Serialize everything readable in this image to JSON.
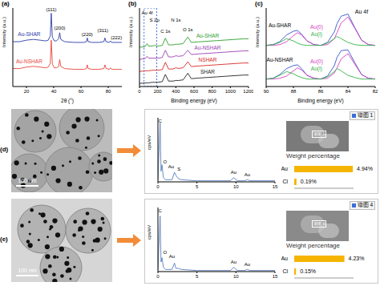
{
  "chart_data": [
    {
      "panel": "(a)",
      "type": "line",
      "x_label": "2θ (°)",
      "y_label": "Intensity (a.u.)",
      "tick_labels": "x",
      "x": [
        10,
        15,
        20,
        25,
        30,
        34,
        36,
        37.5,
        38.2,
        39,
        40.5,
        42,
        43.6,
        44.4,
        45.2,
        48,
        55,
        62,
        64,
        64.6,
        65.3,
        68,
        73,
        76.8,
        77.6,
        78.4,
        80.9,
        81.7,
        82.5,
        86,
        90
      ],
      "xlim": [
        10,
        90
      ],
      "xticks": [
        20,
        40,
        60,
        80
      ],
      "ylim": [
        0,
        105
      ],
      "series": [
        {
          "name": "Au-SHAR",
          "color": "#2b3ea8",
          "label_x": 22,
          "label_y": 70,
          "values": [
            60,
            60,
            62,
            63,
            62,
            61,
            62,
            68,
            98,
            66,
            61,
            61,
            64,
            72,
            63,
            60,
            59,
            59,
            60,
            65,
            60,
            59,
            59,
            60,
            65,
            60,
            59,
            61,
            59,
            59,
            59
          ]
        },
        {
          "name": "Au-NSHAR",
          "color": "#e8453c",
          "label_x": 22,
          "label_y": 34,
          "values": [
            24,
            24,
            26,
            27,
            26,
            25,
            26,
            31,
            62,
            30,
            25,
            25,
            27,
            36,
            27,
            24,
            23,
            23,
            24,
            29,
            24,
            23,
            23,
            24,
            29,
            24,
            23,
            25,
            23,
            23,
            23
          ]
        }
      ],
      "annotations": [
        {
          "text": "(111)",
          "x": 38.2,
          "y": 103
        },
        {
          "text": "(200)",
          "x": 44.4,
          "y": 78
        },
        {
          "text": "(220)",
          "x": 64.6,
          "y": 70
        },
        {
          "text": "(311)",
          "x": 76,
          "y": 75
        },
        {
          "text": "(222)",
          "x": 86,
          "y": 66
        }
      ]
    },
    {
      "panel": "(b)",
      "type": "line",
      "x_label": "Binding energy (eV)",
      "y_label": "Intensity (a.u.)",
      "tick_labels": "x",
      "x": [
        0,
        60,
        84,
        100,
        140,
        164,
        200,
        250,
        285,
        320,
        370,
        400,
        430,
        480,
        532,
        570,
        650,
        750,
        850,
        950,
        1050,
        1150,
        1200
      ],
      "xlim": [
        0,
        1200
      ],
      "xticks": [
        0,
        200,
        400,
        600,
        800,
        1000,
        1200
      ],
      "ylim": [
        0,
        130
      ],
      "highlight": [
        50,
        190
      ],
      "series": [
        {
          "name": "Au-SHAR",
          "color": "#2ca02c",
          "label_x": 750,
          "label_y": 84,
          "values": [
            65,
            66,
            71,
            67,
            67,
            68,
            67,
            68,
            80,
            69,
            69,
            70,
            70,
            71,
            82,
            73,
            74,
            75,
            76,
            77,
            78,
            79,
            79
          ]
        },
        {
          "name": "Au-NSHAR",
          "color": "#9b3fb5",
          "label_x": 750,
          "label_y": 64,
          "values": [
            45,
            46,
            50,
            47,
            47,
            47,
            47,
            48,
            60,
            49,
            49,
            51,
            50,
            51,
            60,
            53,
            54,
            55,
            56,
            57,
            58,
            59,
            59
          ]
        },
        {
          "name": "NSHAR",
          "color": "#d62728",
          "label_x": 750,
          "label_y": 44,
          "values": [
            25,
            26,
            26,
            26,
            27,
            27,
            27,
            28,
            40,
            29,
            29,
            31,
            30,
            31,
            41,
            33,
            34,
            35,
            36,
            37,
            38,
            39,
            39
          ]
        },
        {
          "name": "SHAR",
          "color": "#222222",
          "label_x": 750,
          "label_y": 24,
          "values": [
            5,
            6,
            6,
            6,
            7,
            7,
            7,
            8,
            20,
            9,
            9,
            10,
            10,
            11,
            22,
            13,
            14,
            15,
            16,
            17,
            18,
            19,
            19
          ]
        }
      ],
      "annotations": [
        {
          "text": "Au 4f",
          "x": 84,
          "y": 122
        },
        {
          "text": "S 2p",
          "x": 164,
          "y": 110
        },
        {
          "text": "C 1s",
          "x": 285,
          "y": 92
        },
        {
          "text": "N 1s",
          "x": 400,
          "y": 110
        },
        {
          "text": "O 1s",
          "x": 532,
          "y": 94
        }
      ]
    },
    {
      "panel": "(c)",
      "type": "line",
      "title": "Au 4f",
      "title_x": 83,
      "title_y": 100,
      "x_label": "Binding energy (eV)",
      "y_label": "Intensity (a.u.)",
      "tick_labels": "x",
      "x": [
        90,
        89.5,
        89,
        88.5,
        88,
        87.7,
        87.4,
        87,
        86.5,
        86,
        85.5,
        85,
        84.8,
        84.5,
        84,
        83.5,
        83,
        82.5,
        82
      ],
      "xlim": [
        90,
        82
      ],
      "xticks": [
        90,
        88,
        86,
        84,
        82
      ],
      "ylim": [
        0,
        105
      ],
      "groups": [
        {
          "label": "Au-SHAR",
          "label_x": 89,
          "label_y": 82,
          "series": [
            {
              "color": "#3355cc",
              "values": [
                55,
                56,
                60,
                69,
                74,
                75,
                70,
                61,
                56,
                55,
                59,
                73,
                84,
                94,
                97,
                79,
                62,
                56,
                55
              ]
            },
            {
              "name": "Au(0)",
              "color": "#d63fbf",
              "label_x": 86.3,
              "label_y": 80,
              "values": [
                55,
                55,
                56,
                60,
                68,
                72,
                69,
                61,
                56,
                55,
                56,
                64,
                72,
                85,
                93,
                78,
                62,
                56,
                55
              ]
            },
            {
              "name": "Au(I)",
              "color": "#33b34a",
              "label_x": 86.3,
              "label_y": 70,
              "values": [
                55,
                56,
                59,
                64,
                61,
                58,
                56,
                55,
                55,
                55,
                58,
                64,
                67,
                64,
                59,
                56,
                55,
                55,
                55
              ]
            }
          ]
        },
        {
          "label": "Au-NSHAR",
          "label_x": 89,
          "label_y": 36,
          "series": [
            {
              "color": "#3355cc",
              "values": [
                10,
                11,
                16,
                24,
                28,
                29,
                24,
                15,
                11,
                10,
                14,
                28,
                39,
                48,
                49,
                32,
                16,
                11,
                10
              ]
            },
            {
              "name": "Au(0)",
              "color": "#d63fbf",
              "label_x": 86.3,
              "label_y": 34,
              "values": [
                10,
                10,
                11,
                14,
                21,
                25,
                22,
                15,
                11,
                10,
                11,
                18,
                25,
                37,
                44,
                30,
                16,
                11,
                10
              ]
            },
            {
              "name": "Au(I)",
              "color": "#33b34a",
              "label_x": 86.3,
              "label_y": 24,
              "values": [
                10,
                11,
                15,
                20,
                17,
                14,
                12,
                10,
                10,
                10,
                13,
                20,
                24,
                21,
                15,
                12,
                10,
                10,
                10
              ]
            }
          ]
        }
      ]
    },
    {
      "panel": "(d)",
      "type": "line",
      "scale_bar": "100 nm",
      "spectrum": "谱图 1",
      "y_label": "cps/eV",
      "tick_labels": "x",
      "x": [
        0,
        0.28,
        0.4,
        0.52,
        0.7,
        1,
        1.8,
        2.12,
        2.31,
        2.62,
        3,
        5,
        8,
        9.3,
        9.71,
        10.2,
        11.1,
        11.44,
        11.8,
        15
      ],
      "xlim": [
        0,
        15
      ],
      "xticks": [
        0,
        5,
        10,
        15
      ],
      "ylim": [
        0,
        60
      ],
      "series": [
        {
          "color": "#5a7fc0",
          "values": [
            2,
            55,
            10,
            16,
            4,
            2,
            2,
            9,
            6,
            3,
            2,
            1,
            1,
            1,
            4,
            1,
            1,
            2,
            1,
            1
          ]
        }
      ],
      "annotations": [
        {
          "text": "C",
          "x": 0.28,
          "y": 57
        },
        {
          "text": "O",
          "x": 0.9,
          "y": 19
        },
        {
          "text": "Au",
          "x": 1.7,
          "y": 14
        },
        {
          "text": "S",
          "x": 2.7,
          "y": 12
        },
        {
          "text": "Au",
          "x": 9.71,
          "y": 9
        },
        {
          "text": "Au",
          "x": 11.44,
          "y": 7
        }
      ],
      "weights": {
        "title": "Weight percentage",
        "categories": [
          "Au",
          "Cl"
        ],
        "values": [
          4.94,
          0.19
        ],
        "value_labels": [
          "4.94%",
          "0.19%"
        ],
        "xlim": [
          0,
          5
        ],
        "tick_labels": false,
        "color": "#f5b400"
      }
    },
    {
      "panel": "(e)",
      "type": "line",
      "scale_bar": "100 nm",
      "spectrum": "谱图 4",
      "y_label": "cps/eV",
      "tick_labels": "x",
      "x": [
        0,
        0.28,
        0.4,
        0.52,
        0.7,
        1,
        1.8,
        2.12,
        2.31,
        2.62,
        3,
        5,
        8,
        9.3,
        9.71,
        10.2,
        11.1,
        11.44,
        11.8,
        15
      ],
      "xlim": [
        0,
        15
      ],
      "xticks": [
        0,
        5,
        10,
        15
      ],
      "ylim": [
        0,
        60
      ],
      "series": [
        {
          "color": "#5a7fc0",
          "values": [
            2,
            52,
            9,
            13,
            4,
            2,
            2,
            8,
            3,
            3,
            2,
            1,
            1,
            1,
            4,
            1,
            1,
            2,
            1,
            1
          ]
        }
      ],
      "annotations": [
        {
          "text": "C",
          "x": 0.28,
          "y": 57
        },
        {
          "text": "O",
          "x": 0.9,
          "y": 18
        },
        {
          "text": "Au",
          "x": 1.8,
          "y": 14
        },
        {
          "text": "Au",
          "x": 9.71,
          "y": 9
        },
        {
          "text": "Au",
          "x": 11.44,
          "y": 7
        }
      ],
      "weights": {
        "title": "Weight percentage",
        "categories": [
          "Au",
          "Cl"
        ],
        "values": [
          4.23,
          0.15
        ],
        "value_labels": [
          "4.23%",
          "0.15%"
        ],
        "xlim": [
          0,
          5
        ],
        "tick_labels": false,
        "color": "#f5b400"
      }
    }
  ]
}
